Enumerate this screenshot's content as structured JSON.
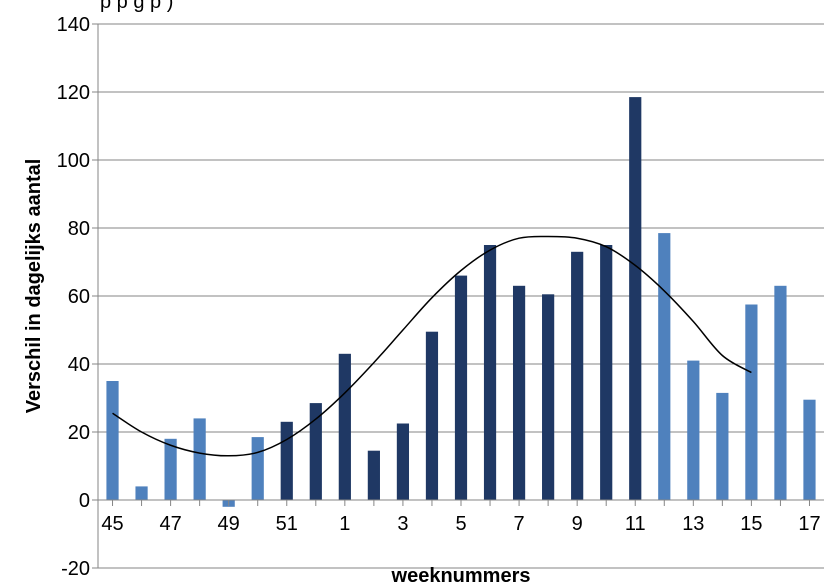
{
  "chart_data": {
    "type": "bar",
    "partial_title": "p                      p g p   )",
    "xlabel": "weeknummers",
    "ylabel": "Verschil in dagelijks aantal",
    "categories": [
      "45",
      "46",
      "47",
      "48",
      "49",
      "50",
      "51",
      "52",
      "1",
      "2",
      "3",
      "4",
      "5",
      "6",
      "7",
      "8",
      "9",
      "10",
      "11",
      "12",
      "13",
      "14",
      "15",
      "16",
      "17"
    ],
    "x_tick_labels": [
      "45",
      "47",
      "49",
      "51",
      "1",
      "3",
      "5",
      "7",
      "9",
      "11",
      "13",
      "15",
      "17"
    ],
    "values": [
      35,
      4,
      18,
      24,
      -2,
      18.5,
      23,
      28.5,
      43,
      14.5,
      22.5,
      49.5,
      66,
      75,
      63,
      60.5,
      73,
      75,
      118.5,
      78.5,
      41,
      31.5,
      57.5,
      63,
      29.5
    ],
    "series_index": [
      0,
      0,
      0,
      0,
      0,
      0,
      1,
      1,
      1,
      1,
      1,
      1,
      1,
      1,
      1,
      1,
      1,
      1,
      1,
      0,
      0,
      0,
      0,
      0,
      0
    ],
    "series_colors": [
      "#4f81bd",
      "#1f3864"
    ],
    "trendline": [
      25.5,
      20,
      16.1,
      13.8,
      13,
      14,
      17.8,
      23.8,
      31.5,
      40.4,
      50,
      59.5,
      67.5,
      73.5,
      77,
      77.5,
      77,
      74.5,
      69,
      61.5,
      52.5,
      42.5,
      37.5
    ],
    "trendline_x": [
      45,
      46,
      47,
      48,
      49,
      50,
      51,
      52,
      1,
      2,
      3,
      4,
      5,
      6,
      7,
      8,
      9,
      10,
      11,
      12,
      13,
      14,
      15
    ],
    "ylim": [
      -20,
      140
    ],
    "yticks": [
      -20,
      0,
      20,
      40,
      60,
      80,
      100,
      120,
      140
    ],
    "grid": true
  }
}
